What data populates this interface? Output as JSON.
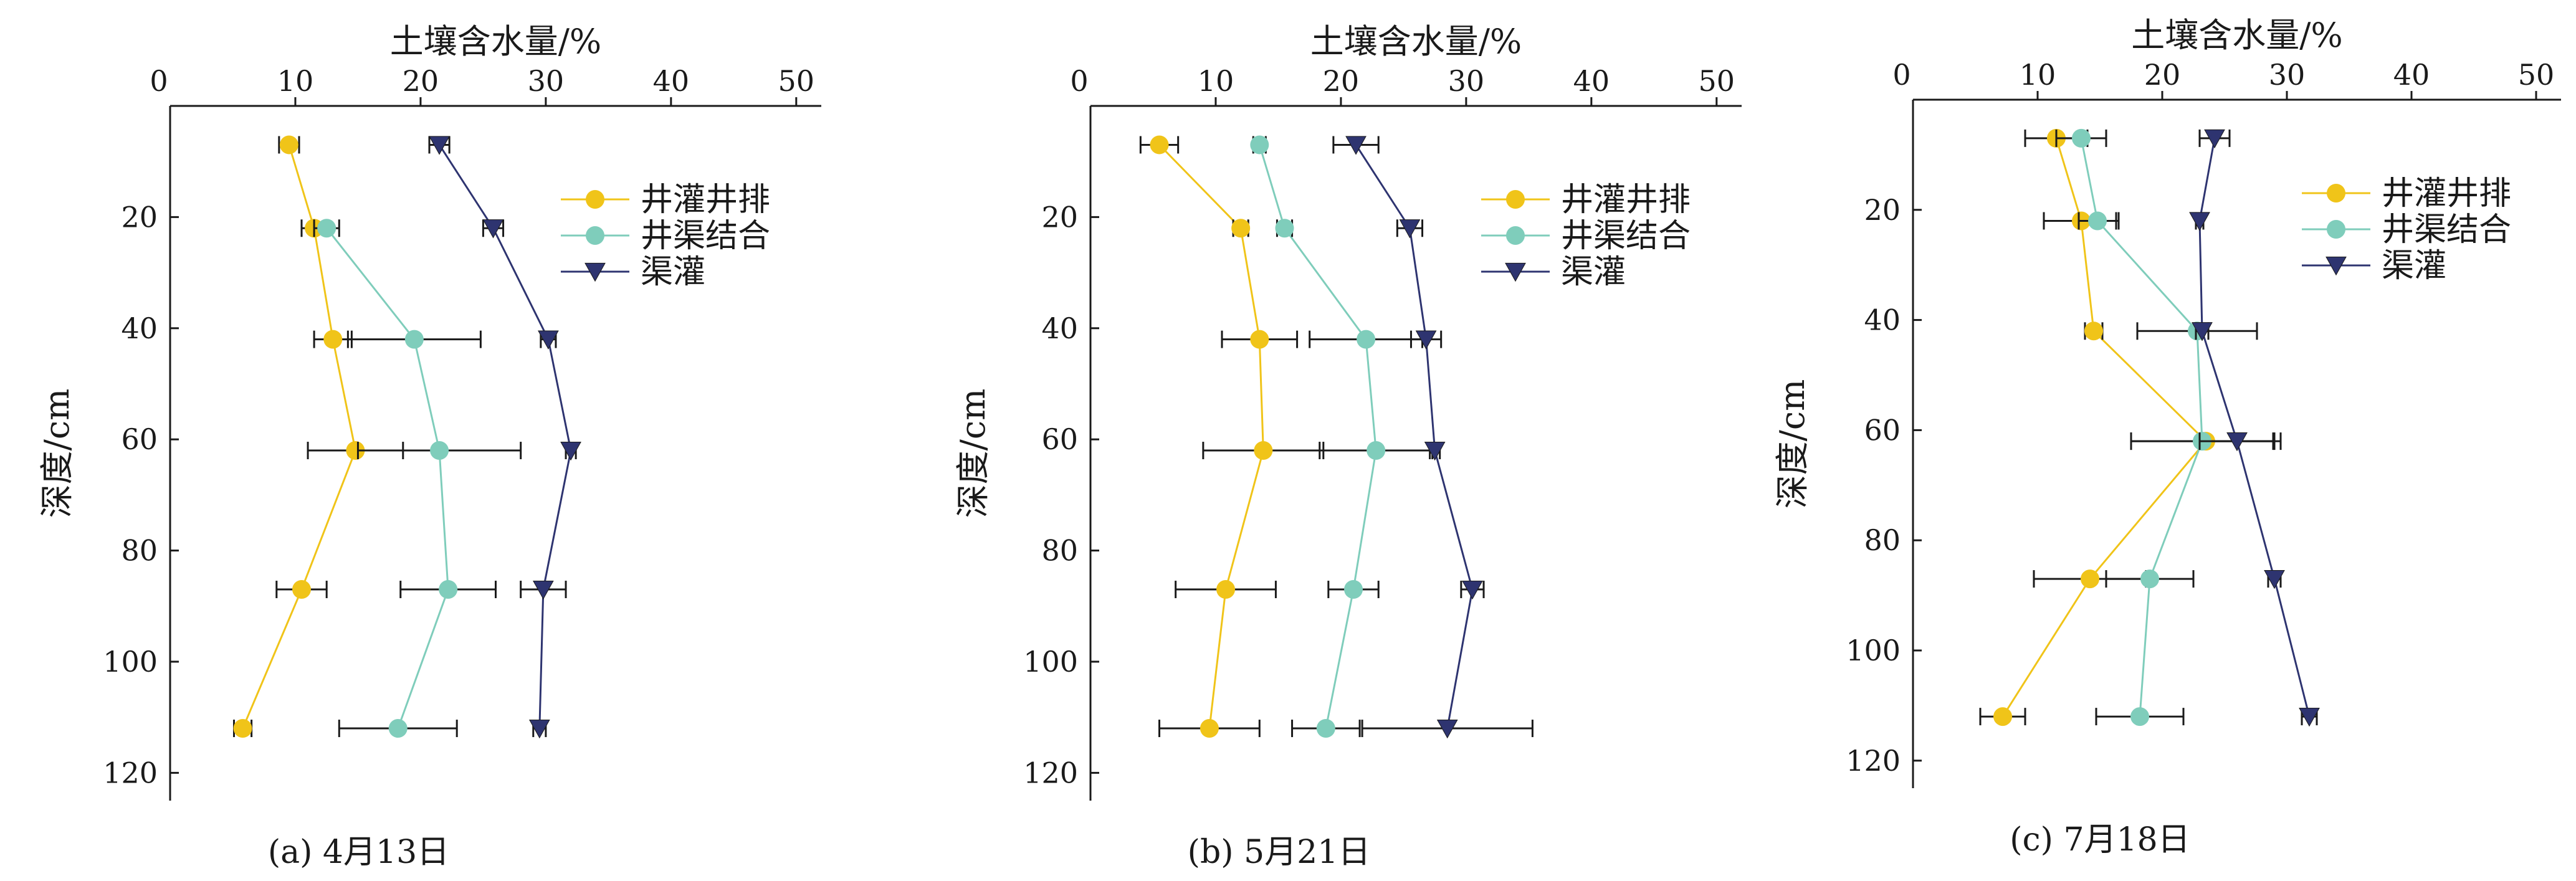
{
  "colors": {
    "井灌井排": "#f0c419",
    "井渠结合": "#7fcdbb",
    "渠灌": "#2e3470"
  },
  "chart_data": [
    {
      "type": "line",
      "caption": "(a) 4月13日",
      "xlabel": "土壤含水量/%",
      "ylabel": "深度/cm",
      "xlim": [
        0,
        52
      ],
      "ylim": [
        0,
        125
      ],
      "xticks": [
        0,
        10,
        20,
        30,
        40,
        50
      ],
      "yticks": [
        20,
        40,
        60,
        80,
        100,
        120
      ],
      "y_inverted": true,
      "legend": "top-right",
      "series": [
        {
          "name": "井灌井排",
          "marker": "circle",
          "points": [
            {
              "depth": 7,
              "x": 9.5,
              "err": 0.8
            },
            {
              "depth": 22,
              "x": 11.5,
              "err": 1.0
            },
            {
              "depth": 42,
              "x": 13.0,
              "err": 1.5
            },
            {
              "depth": 62,
              "x": 14.8,
              "err": 3.8
            },
            {
              "depth": 87,
              "x": 10.5,
              "err": 2.0
            },
            {
              "depth": 112,
              "x": 5.8,
              "err": 0.7
            }
          ]
        },
        {
          "name": "井渠结合",
          "marker": "circle",
          "points": [
            {
              "depth": 22,
              "x": 12.5,
              "err": 1.0
            },
            {
              "depth": 42,
              "x": 19.5,
              "err": 5.3
            },
            {
              "depth": 62,
              "x": 21.5,
              "err": 6.5
            },
            {
              "depth": 87,
              "x": 22.2,
              "err": 3.8
            },
            {
              "depth": 112,
              "x": 18.2,
              "err": 4.7
            }
          ]
        },
        {
          "name": "渠灌",
          "marker": "triangle-down",
          "points": [
            {
              "depth": 7,
              "x": 21.5,
              "err": 0.8
            },
            {
              "depth": 22,
              "x": 25.8,
              "err": 0.8
            },
            {
              "depth": 42,
              "x": 30.2,
              "err": 0.6
            },
            {
              "depth": 62,
              "x": 32.0,
              "err": 0.4
            },
            {
              "depth": 87,
              "x": 29.8,
              "err": 1.8
            },
            {
              "depth": 112,
              "x": 29.5,
              "err": 0.5
            }
          ]
        }
      ]
    },
    {
      "type": "line",
      "caption": "(b) 5月21日",
      "xlabel": "土壤含水量/%",
      "ylabel": "深度/cm",
      "xlim": [
        0,
        52
      ],
      "ylim": [
        0,
        125
      ],
      "xticks": [
        0,
        10,
        20,
        30,
        40,
        50
      ],
      "yticks": [
        20,
        40,
        60,
        80,
        100,
        120
      ],
      "y_inverted": true,
      "legend": "top-right",
      "series": [
        {
          "name": "井灌井排",
          "marker": "circle",
          "points": [
            {
              "depth": 7,
              "x": 5.5,
              "err": 1.5
            },
            {
              "depth": 22,
              "x": 12.0,
              "err": 0.6
            },
            {
              "depth": 42,
              "x": 13.5,
              "err": 3.0
            },
            {
              "depth": 62,
              "x": 13.8,
              "err": 4.8
            },
            {
              "depth": 87,
              "x": 10.8,
              "err": 4.0
            },
            {
              "depth": 112,
              "x": 9.5,
              "err": 4.0
            }
          ]
        },
        {
          "name": "井渠结合",
          "marker": "circle",
          "points": [
            {
              "depth": 7,
              "x": 13.5,
              "err": 0.5
            },
            {
              "depth": 22,
              "x": 15.5,
              "err": 0.6
            },
            {
              "depth": 42,
              "x": 22.0,
              "err": 4.5
            },
            {
              "depth": 62,
              "x": 22.8,
              "err": 4.5
            },
            {
              "depth": 87,
              "x": 21.0,
              "err": 2.0
            },
            {
              "depth": 112,
              "x": 18.8,
              "err": 2.7
            }
          ]
        },
        {
          "name": "渠灌",
          "marker": "triangle-down",
          "points": [
            {
              "depth": 7,
              "x": 21.2,
              "err": 1.8
            },
            {
              "depth": 22,
              "x": 25.5,
              "err": 1.0
            },
            {
              "depth": 42,
              "x": 26.8,
              "err": 1.2
            },
            {
              "depth": 62,
              "x": 27.5,
              "err": 0.4
            },
            {
              "depth": 87,
              "x": 30.5,
              "err": 0.9
            },
            {
              "depth": 112,
              "x": 28.5,
              "err": 6.8
            }
          ]
        }
      ]
    },
    {
      "type": "line",
      "caption": "(c) 7月18日",
      "xlabel": "土壤含水量/%",
      "ylabel": "深度/cm",
      "xlim": [
        0,
        52
      ],
      "ylim": [
        0,
        125
      ],
      "xticks": [
        0,
        10,
        20,
        30,
        40,
        50
      ],
      "yticks": [
        20,
        40,
        60,
        80,
        100,
        120
      ],
      "y_inverted": true,
      "legend": "top-right",
      "series": [
        {
          "name": "井灌井排",
          "marker": "circle",
          "points": [
            {
              "depth": 7,
              "x": 11.5,
              "err": 2.5
            },
            {
              "depth": 22,
              "x": 13.5,
              "err": 3.0
            },
            {
              "depth": 42,
              "x": 14.5,
              "err": 0.7
            },
            {
              "depth": 62,
              "x": 23.5,
              "err": 6.0
            },
            {
              "depth": 87,
              "x": 14.2,
              "err": 4.5
            },
            {
              "depth": 112,
              "x": 7.2,
              "err": 1.8
            }
          ]
        },
        {
          "name": "井渠结合",
          "marker": "circle",
          "points": [
            {
              "depth": 7,
              "x": 13.5,
              "err": 2.0
            },
            {
              "depth": 22,
              "x": 14.8,
              "err": 1.5
            },
            {
              "depth": 42,
              "x": 22.8,
              "err": 4.8
            },
            {
              "depth": 62,
              "x": 23.2,
              "err": 5.7
            },
            {
              "depth": 87,
              "x": 19.0,
              "err": 3.5
            },
            {
              "depth": 112,
              "x": 18.2,
              "err": 3.5
            }
          ]
        },
        {
          "name": "渠灌",
          "marker": "triangle-down",
          "points": [
            {
              "depth": 7,
              "x": 24.2,
              "err": 1.2
            },
            {
              "depth": 22,
              "x": 23.0,
              "err": 0.3
            },
            {
              "depth": 42,
              "x": 23.2,
              "err": 0.5
            },
            {
              "depth": 62,
              "x": 26.0,
              "err": 3.0
            },
            {
              "depth": 87,
              "x": 29.0,
              "err": 0.5
            },
            {
              "depth": 112,
              "x": 31.8,
              "err": 0.6
            }
          ]
        }
      ]
    }
  ]
}
